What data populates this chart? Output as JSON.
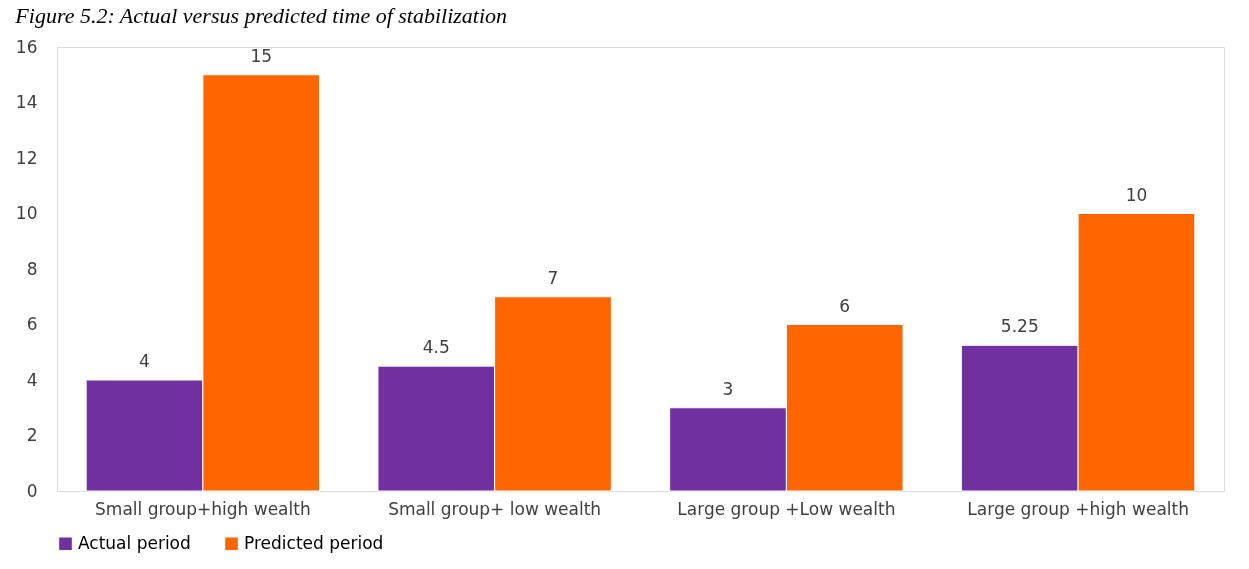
{
  "chart_data": {
    "type": "bar",
    "title": "Figure 5.2: Actual versus predicted time of stabilization",
    "categories": [
      "Small group+high wealth",
      "Small group+ low wealth",
      "Large group +Low wealth",
      "Large group +high wealth"
    ],
    "series": [
      {
        "name": "Actual period",
        "color": "#7030a0",
        "values": [
          4,
          4.5,
          3,
          5.25
        ]
      },
      {
        "name": "Predicted period",
        "color": "#ff6600",
        "values": [
          15,
          7,
          6,
          10
        ]
      }
    ],
    "ylim": [
      0,
      16
    ],
    "yticks": [
      0,
      2,
      4,
      6,
      8,
      10,
      12,
      14,
      16
    ],
    "grid": false,
    "legend": "bottom",
    "data_labels": true
  }
}
